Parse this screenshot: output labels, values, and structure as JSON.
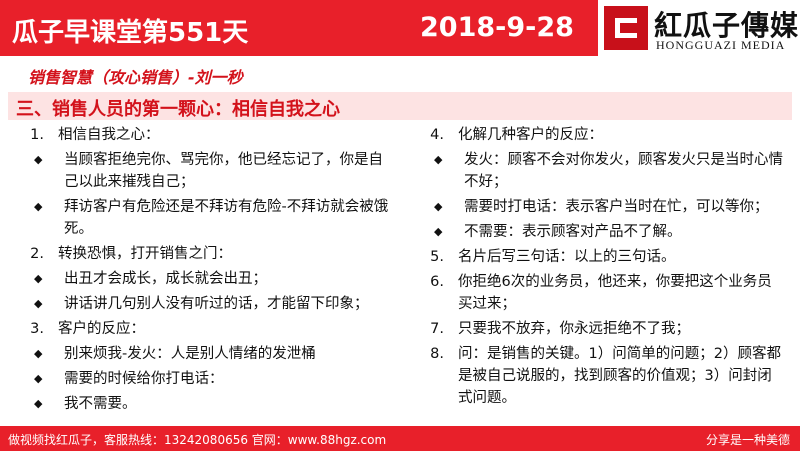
{
  "header": {
    "title": "瓜子早课堂第551天",
    "date": "2018-9-28",
    "logo": "紅瓜子傳媒",
    "logo_sub": "HONGGUAZI MEDIA"
  },
  "subtitle": "销售智慧（攻心销售）-刘一秒",
  "section": "三、销售人员的第一颗心：相信自我之心",
  "columns": [
    [
      {
        "num": "1.",
        "text": "相信自我之心：",
        "bullets": [
          "当顾客拒绝完你、骂完你，他已经忘记了，你是自己以此来摧残自己；",
          "拜访客户有危险还是不拜访有危险-不拜访就会被饿死。"
        ]
      },
      {
        "num": "2.",
        "text": "转换恐惧，打开销售之门：",
        "bullets": [
          "出丑才会成长，成长就会出丑；",
          "讲话讲几句别人没有听过的话，才能留下印象；"
        ]
      },
      {
        "num": "3.",
        "text": "客户的反应：",
        "bullets": [
          "别来烦我-发火：人是别人情绪的发泄桶",
          "需要的时候给你打电话：",
          "我不需要。"
        ]
      }
    ],
    [
      {
        "num": "4.",
        "text": "化解几种客户的反应：",
        "bullets": [
          "发火：顾客不会对你发火，顾客发火只是当时心情不好；",
          "需要时打电话：表示客户当时在忙，可以等你；",
          "不需要：表示顾客对产品不了解。"
        ]
      },
      {
        "num": "5.",
        "text": "名片后写三句话：以上的三句话。",
        "bullets": []
      },
      {
        "num": "6.",
        "text": "你拒绝6次的业务员，他还来，你要把这个业务员买过来；",
        "bullets": []
      },
      {
        "num": "7.",
        "text": "只要我不放弃，你永远拒绝不了我；",
        "bullets": []
      },
      {
        "num": "8.",
        "text": "问：是销售的关键。1）问简单的问题；2）顾客都是被自己说服的，找到顾客的价值观；3）问封闭式问题。",
        "bullets": []
      }
    ]
  ],
  "footer": {
    "left": "做视频找红瓜子，客服热线：13242080656  官网：www.88hgz.com",
    "right": "分享是一种美德"
  }
}
